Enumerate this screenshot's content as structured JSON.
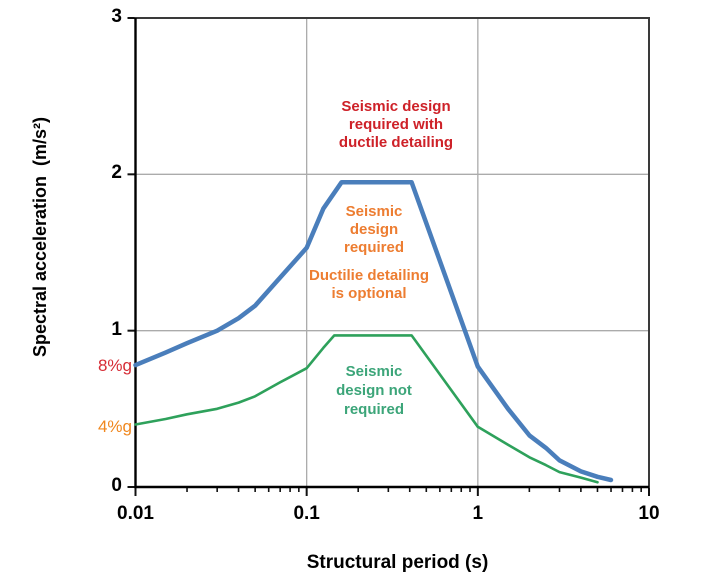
{
  "chart_data": {
    "type": "line",
    "title": "",
    "xlabel": "Structural period (s)",
    "ylabel": "Spectral acceleration  (m/s²)",
    "x_scale": "log",
    "y_scale": "linear",
    "xlim": [
      0.01,
      10
    ],
    "ylim": [
      0,
      3
    ],
    "x_ticks": [
      0.01,
      0.1,
      1,
      10
    ],
    "x_tick_labels": [
      "0.01",
      "0.1",
      "1",
      "10"
    ],
    "y_ticks": [
      0,
      1,
      2,
      3
    ],
    "y_tick_labels": [
      "0",
      "1",
      "2",
      "3"
    ],
    "grid": true,
    "legend": "none",
    "colors": {
      "grid": "#ABABAB",
      "axis": "#3A3A3A",
      "tick_text": "#000000",
      "blue_curve": "#4A7EBB",
      "green_curve": "#2EA15B"
    },
    "series": [
      {
        "name": "8%g",
        "color": "#4A7EBB",
        "stroke_width": 4.5,
        "points": [
          [
            0.01,
            0.78
          ],
          [
            0.015,
            0.86
          ],
          [
            0.02,
            0.92
          ],
          [
            0.03,
            1.0
          ],
          [
            0.04,
            1.08
          ],
          [
            0.05,
            1.16
          ],
          [
            0.07,
            1.34
          ],
          [
            0.1,
            1.53
          ],
          [
            0.125,
            1.78
          ],
          [
            0.16,
            1.95
          ],
          [
            0.41,
            1.95
          ],
          [
            1.0,
            0.77
          ],
          [
            1.5,
            0.5
          ],
          [
            2.0,
            0.33
          ],
          [
            2.5,
            0.25
          ],
          [
            3.0,
            0.17
          ],
          [
            4.0,
            0.1
          ],
          [
            5.0,
            0.065
          ],
          [
            6.0,
            0.045
          ]
        ]
      },
      {
        "name": "4%g",
        "color": "#2EA15B",
        "stroke_width": 2.6,
        "points": [
          [
            0.01,
            0.4
          ],
          [
            0.015,
            0.435
          ],
          [
            0.02,
            0.465
          ],
          [
            0.03,
            0.5
          ],
          [
            0.04,
            0.54
          ],
          [
            0.05,
            0.58
          ],
          [
            0.07,
            0.67
          ],
          [
            0.1,
            0.76
          ],
          [
            0.125,
            0.89
          ],
          [
            0.145,
            0.97
          ],
          [
            0.41,
            0.97
          ],
          [
            1.0,
            0.385
          ],
          [
            1.5,
            0.27
          ],
          [
            2.0,
            0.19
          ],
          [
            2.5,
            0.14
          ],
          [
            3.0,
            0.095
          ],
          [
            4.0,
            0.06
          ],
          [
            5.0,
            0.03
          ]
        ]
      }
    ],
    "annotations": [
      {
        "id": "zone-ductile",
        "text": "Seismic design\nrequired with\nductile detailing",
        "color": "#CE2128"
      },
      {
        "id": "zone-required",
        "text": "Seismic\ndesign\nrequired",
        "color": "#ED7D31"
      },
      {
        "id": "zone-optional",
        "text": "Ductilie detailing\nis optional",
        "color": "#ED7D31"
      },
      {
        "id": "zone-not-required",
        "text": "Seismic\ndesign not\nrequired",
        "color": "#3CA579"
      },
      {
        "id": "label-8g",
        "text": "8%g",
        "color": "#D62C35"
      },
      {
        "id": "label-4g",
        "text": "4%g",
        "color": "#F0871E"
      }
    ]
  }
}
